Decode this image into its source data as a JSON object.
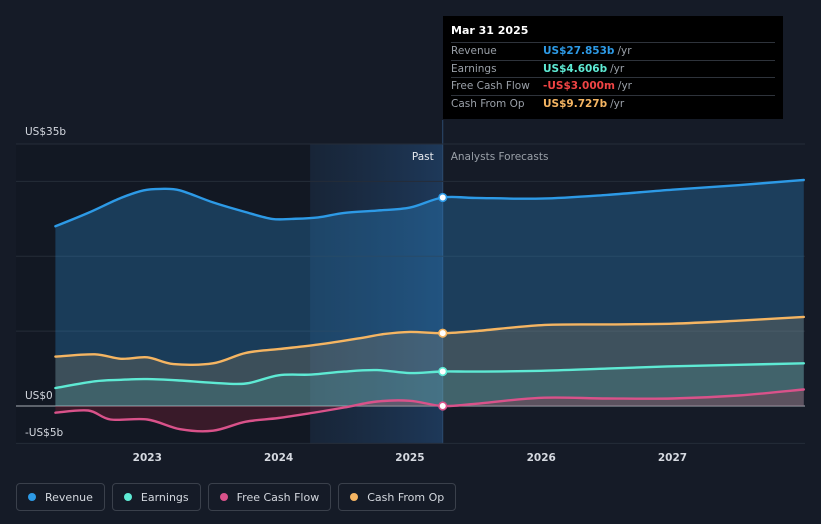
{
  "tooltip": {
    "date": "Mar 31 2025",
    "rows": [
      {
        "label": "Revenue",
        "value": "US$27.853b",
        "unit": "/yr",
        "color": "#2d9ae6"
      },
      {
        "label": "Earnings",
        "value": "US$4.606b",
        "unit": "/yr",
        "color": "#5eead4"
      },
      {
        "label": "Free Cash Flow",
        "value": "-US$3.000m",
        "unit": "/yr",
        "color": "#ef4444"
      },
      {
        "label": "Cash From Op",
        "value": "US$9.727b",
        "unit": "/yr",
        "color": "#f5b562"
      }
    ]
  },
  "legend": [
    {
      "label": "Revenue",
      "color": "#2d9ae6"
    },
    {
      "label": "Earnings",
      "color": "#5eead4"
    },
    {
      "label": "Free Cash Flow",
      "color": "#d9528a"
    },
    {
      "label": "Cash From Op",
      "color": "#f5b562"
    }
  ],
  "chart_data": {
    "type": "line",
    "x_start": 2022.3,
    "x_end": 2028.0,
    "split_x": 2025.25,
    "shade_start_x": 2024.24,
    "ylim": [
      -5,
      35
    ],
    "y_tick_labels": [
      {
        "value": 35,
        "label": "US$35b"
      },
      {
        "value": 0,
        "label": "US$0"
      },
      {
        "value": -5,
        "label": "-US$5b"
      }
    ],
    "grid_values": [
      35,
      30,
      20,
      10,
      0,
      -5
    ],
    "x_ticks": [
      {
        "value": 2023,
        "label": "2023"
      },
      {
        "value": 2024,
        "label": "2024"
      },
      {
        "value": 2025,
        "label": "2025"
      },
      {
        "value": 2026,
        "label": "2026"
      },
      {
        "value": 2027,
        "label": "2027"
      }
    ],
    "past_label": "Past",
    "forecast_label": "Analysts Forecasts",
    "series": [
      {
        "name": "Revenue",
        "color": "#2d9ae6",
        "points": [
          [
            2022.3,
            24
          ],
          [
            2022.55,
            25.8
          ],
          [
            2022.8,
            27.8
          ],
          [
            2022.97,
            28.8
          ],
          [
            2023.1,
            29
          ],
          [
            2023.25,
            28.8
          ],
          [
            2023.5,
            27.2
          ],
          [
            2023.75,
            25.9
          ],
          [
            2023.95,
            25
          ],
          [
            2024.1,
            25
          ],
          [
            2024.3,
            25.2
          ],
          [
            2024.5,
            25.8
          ],
          [
            2024.75,
            26.1
          ],
          [
            2025.0,
            26.5
          ],
          [
            2025.25,
            27.85
          ],
          [
            2025.5,
            27.8
          ],
          [
            2026.0,
            27.7
          ],
          [
            2026.5,
            28.2
          ],
          [
            2027.0,
            28.9
          ],
          [
            2027.5,
            29.5
          ],
          [
            2028.0,
            30.2
          ]
        ]
      },
      {
        "name": "Cash From Op",
        "color": "#f5b562",
        "points": [
          [
            2022.3,
            6.6
          ],
          [
            2022.6,
            6.9
          ],
          [
            2022.8,
            6.3
          ],
          [
            2023.0,
            6.5
          ],
          [
            2023.2,
            5.6
          ],
          [
            2023.5,
            5.7
          ],
          [
            2023.75,
            7.1
          ],
          [
            2024.0,
            7.6
          ],
          [
            2024.3,
            8.2
          ],
          [
            2024.6,
            9.0
          ],
          [
            2024.8,
            9.6
          ],
          [
            2025.0,
            9.9
          ],
          [
            2025.25,
            9.73
          ],
          [
            2025.5,
            10.0
          ],
          [
            2026.0,
            10.8
          ],
          [
            2026.5,
            10.9
          ],
          [
            2027.0,
            11.0
          ],
          [
            2027.5,
            11.4
          ],
          [
            2028.0,
            11.9
          ]
        ]
      },
      {
        "name": "Earnings",
        "color": "#5eead4",
        "points": [
          [
            2022.3,
            2.4
          ],
          [
            2022.6,
            3.3
          ],
          [
            2022.8,
            3.5
          ],
          [
            2023.0,
            3.6
          ],
          [
            2023.25,
            3.4
          ],
          [
            2023.5,
            3.1
          ],
          [
            2023.75,
            3.0
          ],
          [
            2024.0,
            4.1
          ],
          [
            2024.25,
            4.2
          ],
          [
            2024.5,
            4.6
          ],
          [
            2024.75,
            4.8
          ],
          [
            2025.0,
            4.4
          ],
          [
            2025.25,
            4.61
          ],
          [
            2025.5,
            4.6
          ],
          [
            2026.0,
            4.7
          ],
          [
            2026.5,
            5.0
          ],
          [
            2027.0,
            5.3
          ],
          [
            2027.5,
            5.5
          ],
          [
            2028.0,
            5.7
          ]
        ]
      },
      {
        "name": "Free Cash Flow",
        "color": "#d9528a",
        "points": [
          [
            2022.3,
            -0.9
          ],
          [
            2022.55,
            -0.6
          ],
          [
            2022.72,
            -1.8
          ],
          [
            2023.0,
            -1.8
          ],
          [
            2023.25,
            -3.1
          ],
          [
            2023.5,
            -3.3
          ],
          [
            2023.75,
            -2.1
          ],
          [
            2024.0,
            -1.6
          ],
          [
            2024.3,
            -0.8
          ],
          [
            2024.5,
            -0.2
          ],
          [
            2024.75,
            0.6
          ],
          [
            2025.0,
            0.7
          ],
          [
            2025.25,
            -0.003
          ],
          [
            2025.5,
            0.3
          ],
          [
            2026.0,
            1.1
          ],
          [
            2026.5,
            1.0
          ],
          [
            2027.0,
            1.0
          ],
          [
            2027.5,
            1.4
          ],
          [
            2028.0,
            2.2
          ]
        ]
      }
    ]
  }
}
